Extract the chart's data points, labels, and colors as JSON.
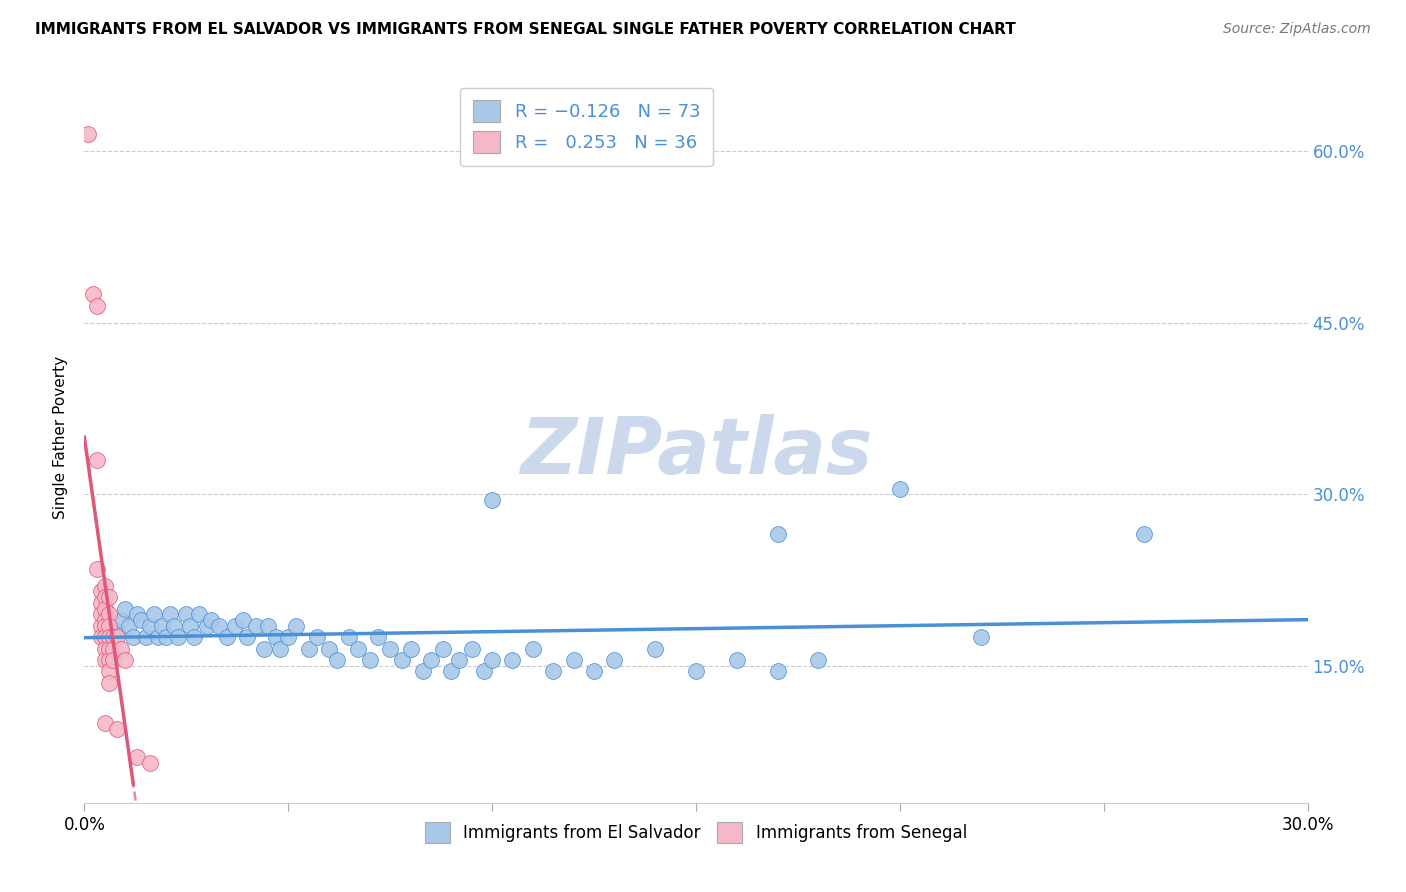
{
  "title": "IMMIGRANTS FROM EL SALVADOR VS IMMIGRANTS FROM SENEGAL SINGLE FATHER POVERTY CORRELATION CHART",
  "source": "Source: ZipAtlas.com",
  "ylabel": "Single Father Poverty",
  "y_ticks": [
    "15.0%",
    "30.0%",
    "45.0%",
    "60.0%"
  ],
  "y_tick_vals": [
    0.15,
    0.3,
    0.45,
    0.6
  ],
  "xlim": [
    0.0,
    0.3
  ],
  "ylim": [
    0.03,
    0.67
  ],
  "color_blue": "#a8c8e8",
  "color_pink": "#f5b8c8",
  "trendline_blue": "#4a90d9",
  "trendline_pink": "#e05878",
  "watermark_color": "#ccd9ed",
  "blue_scatter": [
    [
      0.005,
      0.195
    ],
    [
      0.006,
      0.185
    ],
    [
      0.007,
      0.175
    ],
    [
      0.008,
      0.18
    ],
    [
      0.009,
      0.19
    ],
    [
      0.01,
      0.2
    ],
    [
      0.011,
      0.185
    ],
    [
      0.012,
      0.175
    ],
    [
      0.013,
      0.195
    ],
    [
      0.014,
      0.19
    ],
    [
      0.015,
      0.175
    ],
    [
      0.016,
      0.185
    ],
    [
      0.017,
      0.195
    ],
    [
      0.018,
      0.175
    ],
    [
      0.019,
      0.185
    ],
    [
      0.02,
      0.175
    ],
    [
      0.021,
      0.195
    ],
    [
      0.022,
      0.185
    ],
    [
      0.023,
      0.175
    ],
    [
      0.025,
      0.195
    ],
    [
      0.026,
      0.185
    ],
    [
      0.027,
      0.175
    ],
    [
      0.028,
      0.195
    ],
    [
      0.03,
      0.185
    ],
    [
      0.031,
      0.19
    ],
    [
      0.033,
      0.185
    ],
    [
      0.035,
      0.175
    ],
    [
      0.037,
      0.185
    ],
    [
      0.039,
      0.19
    ],
    [
      0.04,
      0.175
    ],
    [
      0.042,
      0.185
    ],
    [
      0.044,
      0.165
    ],
    [
      0.045,
      0.185
    ],
    [
      0.047,
      0.175
    ],
    [
      0.048,
      0.165
    ],
    [
      0.05,
      0.175
    ],
    [
      0.052,
      0.185
    ],
    [
      0.055,
      0.165
    ],
    [
      0.057,
      0.175
    ],
    [
      0.06,
      0.165
    ],
    [
      0.062,
      0.155
    ],
    [
      0.065,
      0.175
    ],
    [
      0.067,
      0.165
    ],
    [
      0.07,
      0.155
    ],
    [
      0.072,
      0.175
    ],
    [
      0.075,
      0.165
    ],
    [
      0.078,
      0.155
    ],
    [
      0.08,
      0.165
    ],
    [
      0.083,
      0.145
    ],
    [
      0.085,
      0.155
    ],
    [
      0.088,
      0.165
    ],
    [
      0.09,
      0.145
    ],
    [
      0.092,
      0.155
    ],
    [
      0.095,
      0.165
    ],
    [
      0.098,
      0.145
    ],
    [
      0.1,
      0.155
    ],
    [
      0.105,
      0.155
    ],
    [
      0.11,
      0.165
    ],
    [
      0.115,
      0.145
    ],
    [
      0.12,
      0.155
    ],
    [
      0.125,
      0.145
    ],
    [
      0.13,
      0.155
    ],
    [
      0.14,
      0.165
    ],
    [
      0.15,
      0.145
    ],
    [
      0.16,
      0.155
    ],
    [
      0.17,
      0.145
    ],
    [
      0.18,
      0.155
    ],
    [
      0.1,
      0.295
    ],
    [
      0.2,
      0.305
    ],
    [
      0.22,
      0.175
    ],
    [
      0.17,
      0.265
    ],
    [
      0.26,
      0.265
    ]
  ],
  "pink_scatter": [
    [
      0.001,
      0.615
    ],
    [
      0.002,
      0.475
    ],
    [
      0.003,
      0.465
    ],
    [
      0.003,
      0.33
    ],
    [
      0.003,
      0.235
    ],
    [
      0.004,
      0.215
    ],
    [
      0.004,
      0.205
    ],
    [
      0.004,
      0.195
    ],
    [
      0.004,
      0.185
    ],
    [
      0.004,
      0.175
    ],
    [
      0.005,
      0.22
    ],
    [
      0.005,
      0.21
    ],
    [
      0.005,
      0.2
    ],
    [
      0.005,
      0.19
    ],
    [
      0.005,
      0.185
    ],
    [
      0.005,
      0.175
    ],
    [
      0.005,
      0.165
    ],
    [
      0.005,
      0.155
    ],
    [
      0.006,
      0.21
    ],
    [
      0.006,
      0.195
    ],
    [
      0.006,
      0.185
    ],
    [
      0.006,
      0.175
    ],
    [
      0.006,
      0.165
    ],
    [
      0.006,
      0.155
    ],
    [
      0.006,
      0.145
    ],
    [
      0.006,
      0.135
    ],
    [
      0.007,
      0.175
    ],
    [
      0.007,
      0.165
    ],
    [
      0.007,
      0.155
    ],
    [
      0.008,
      0.175
    ],
    [
      0.009,
      0.165
    ],
    [
      0.01,
      0.155
    ],
    [
      0.005,
      0.1
    ],
    [
      0.008,
      0.095
    ],
    [
      0.013,
      0.07
    ],
    [
      0.016,
      0.065
    ]
  ],
  "trendline_blue_params": [
    -0.126,
    0.19
  ],
  "trendline_pink_params": [
    0.253,
    0.155
  ]
}
